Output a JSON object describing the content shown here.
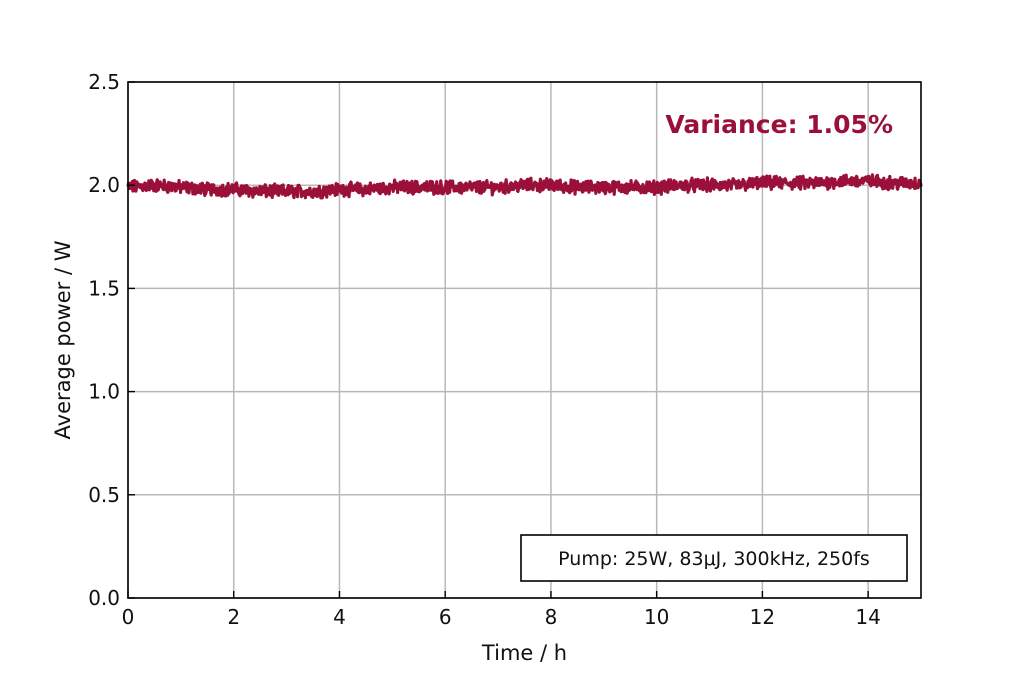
{
  "chart_data": {
    "type": "line",
    "xlabel": "Time / h",
    "ylabel": "Average power / W",
    "xlim": [
      0,
      15
    ],
    "ylim": [
      0.0,
      2.5
    ],
    "xticks": [
      "0",
      "2",
      "4",
      "6",
      "8",
      "10",
      "12",
      "14"
    ],
    "yticks": [
      "0.0",
      "0.5",
      "1.0",
      "1.5",
      "2.0",
      "2.5"
    ],
    "grid": true,
    "series": [
      {
        "color": "#9b1039",
        "x": [
          0,
          0.5,
          1,
          1.5,
          2,
          2.5,
          3,
          3.5,
          4,
          4.5,
          5,
          5.5,
          6,
          6.5,
          7,
          7.5,
          8,
          8.5,
          9,
          9.5,
          10,
          10.5,
          11,
          11.5,
          12,
          12.5,
          13,
          13.5,
          14,
          14.5,
          15
        ],
        "values": [
          1.99,
          2.0,
          1.99,
          1.98,
          1.98,
          1.97,
          1.97,
          1.97,
          1.98,
          1.98,
          1.99,
          1.99,
          1.99,
          1.99,
          1.99,
          2.0,
          2.0,
          1.99,
          1.99,
          1.99,
          1.99,
          2.0,
          2.0,
          2.0,
          2.01,
          2.01,
          2.01,
          2.02,
          2.02,
          2.01,
          2.01
        ]
      }
    ],
    "annotation": {
      "text": "Variance: 1.05%",
      "color": "#9b1039"
    },
    "legend_box": {
      "text": "Pump: 25W, 83μJ, 300kHz, 250fs",
      "placement": "bottom-right"
    }
  }
}
